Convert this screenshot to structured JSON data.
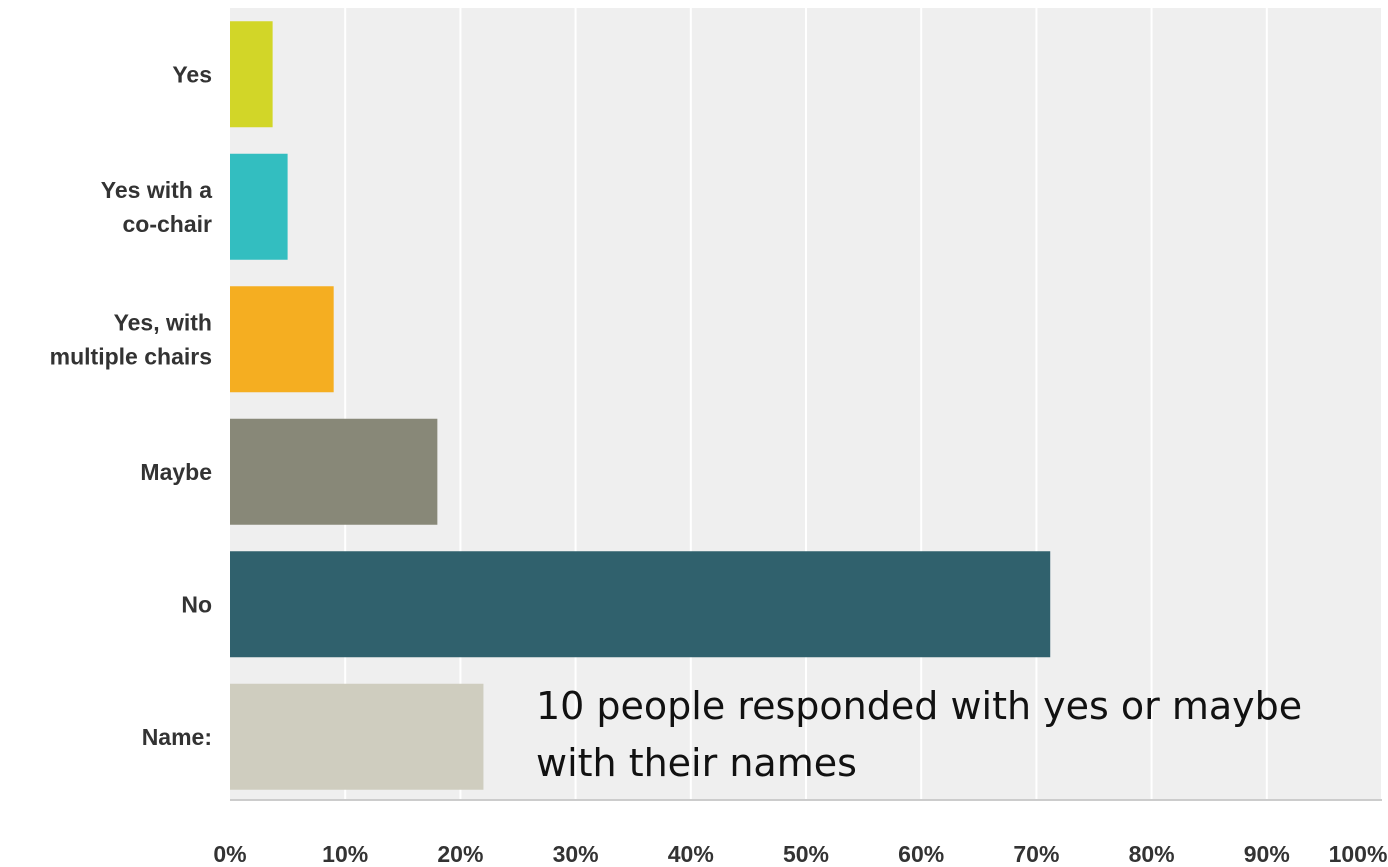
{
  "chart_data": {
    "type": "bar",
    "orientation": "horizontal",
    "categories": [
      "Yes",
      "Yes with a co-chair",
      "Yes, with multiple chairs",
      "Maybe",
      "No",
      "Name:"
    ],
    "category_lines": [
      [
        "Yes"
      ],
      [
        "Yes with a",
        "co-chair"
      ],
      [
        "Yes, with",
        "multiple chairs"
      ],
      [
        "Maybe"
      ],
      [
        "No"
      ],
      [
        "Name:"
      ]
    ],
    "values": [
      3.7,
      5.0,
      9.0,
      18.0,
      71.2,
      22.0
    ],
    "colors": [
      "#d2d628",
      "#33bec0",
      "#f5ae21",
      "#888878",
      "#30616d",
      "#cfcdbf"
    ],
    "xlim": [
      0,
      100
    ],
    "x_ticks": [
      "0%",
      "10%",
      "20%",
      "30%",
      "40%",
      "50%",
      "60%",
      "70%",
      "80%",
      "90%",
      "100%"
    ],
    "grid": true,
    "annotation": "10 people responded with yes or maybe with their names"
  },
  "colors": {
    "plot_background": "#efefef",
    "gridline": "#ffffff",
    "axis": "#cccccc"
  }
}
